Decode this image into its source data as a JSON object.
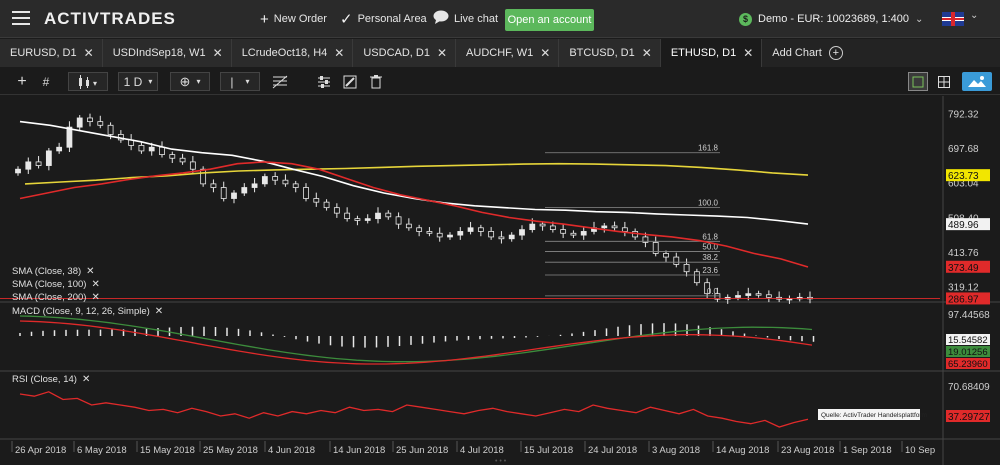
{
  "app": {
    "logo": "ACTIVTRADES"
  },
  "topnav": {
    "new_order": "New Order",
    "personal_area": "Personal Area",
    "live_chat": "Live chat",
    "open_account": "Open an account",
    "account_label": "Demo - EUR: 10023689, 1:400"
  },
  "tabs": [
    {
      "label": "EURUSD, D1"
    },
    {
      "label": "USDIndSep18, W1"
    },
    {
      "label": "LCrudeOct18, H4"
    },
    {
      "label": "USDCAD, D1"
    },
    {
      "label": "AUDCHF, W1"
    },
    {
      "label": "BTCUSD, D1"
    },
    {
      "label": "ETHUSD, D1"
    }
  ],
  "add_chart": "Add Chart",
  "toolbar": {
    "timeframe": "1 D"
  },
  "colors": {
    "background": "#1b1b1b",
    "sma38": "#e02a2a",
    "sma100": "#ffffff",
    "sma200": "#e6d53a",
    "macd_line": "#e02a2a",
    "signal_line": "#3c8c3c",
    "rsi_line": "#e02a2a",
    "accent_green": "#5cb85c",
    "accent_blue": "#3a9bd8"
  },
  "indicators": {
    "sma38": "SMA (Close, 38)",
    "sma100": "SMA (Close, 100)",
    "sma200": "SMA (Close, 200)",
    "macd": "MACD (Close, 9, 12, 26, Simple)",
    "rsi": "RSI (Close, 14)"
  },
  "source_note": "Quelle: ActivTrader Handelsplattform",
  "chart_data": {
    "type": "candlestick",
    "instrument": "ETHUSD",
    "timeframe": "D1",
    "price_axis": {
      "ticks": [
        "792.32",
        "697.68",
        "603.04",
        "508.40",
        "413.76",
        "319.12"
      ],
      "ylim": [
        280,
        840
      ]
    },
    "price_labels": [
      {
        "value": "623.73",
        "color": "#f2e600",
        "text_color": "#111"
      },
      {
        "value": "489.96",
        "color": "#f2f2f2",
        "text_color": "#111"
      },
      {
        "value": "373.49",
        "color": "#e02a2a",
        "text_color": "#111"
      },
      {
        "value": "286.97",
        "color": "#e02a2a",
        "text_color": "#111"
      }
    ],
    "x_labels": [
      "26 Apr 2018",
      "6 May 2018",
      "15 May 2018",
      "25 May 2018",
      "4 Jun 2018",
      "14 Jun 2018",
      "25 Jun 2018",
      "4 Jul 2018",
      "15 Jul 2018",
      "24 Jul 2018",
      "3 Aug 2018",
      "14 Aug 2018",
      "23 Aug 2018",
      "1 Sep 2018",
      "10 Sep"
    ],
    "candles_close": [
      640,
      660,
      650,
      690,
      700,
      755,
      780,
      770,
      760,
      735,
      720,
      705,
      690,
      700,
      680,
      670,
      660,
      640,
      600,
      590,
      560,
      575,
      590,
      600,
      620,
      610,
      600,
      590,
      560,
      550,
      535,
      520,
      505,
      500,
      505,
      520,
      510,
      490,
      480,
      470,
      465,
      455,
      460,
      470,
      480,
      470,
      455,
      450,
      460,
      475,
      490,
      485,
      475,
      465,
      460,
      470,
      480,
      485,
      480,
      470,
      455,
      440,
      410,
      400,
      380,
      360,
      330,
      300,
      285,
      290,
      295,
      300,
      297,
      290,
      285,
      287,
      290,
      287
    ],
    "fibonacci": {
      "levels": [
        "161.8",
        "100.0",
        "61.8",
        "50.0",
        "38.2",
        "23.6",
        "0.0"
      ],
      "prices": [
        685,
        535,
        443,
        415,
        386,
        351,
        294
      ]
    },
    "sma38": [
      560,
      575,
      590,
      600,
      612,
      622,
      630,
      640,
      655,
      660,
      655,
      640,
      615,
      590,
      570,
      555,
      540,
      522,
      508,
      498,
      490,
      480,
      470,
      462,
      455,
      445,
      430,
      410,
      395,
      373
    ],
    "sma100": [
      770,
      760,
      745,
      730,
      715,
      695,
      685,
      678,
      662,
      640,
      620,
      595,
      575,
      560,
      548,
      540,
      535,
      530,
      528,
      524,
      522,
      518,
      515,
      512,
      508,
      500,
      490
    ],
    "sma200": [
      600,
      605,
      610,
      617,
      622,
      630,
      635,
      638,
      640,
      642,
      645,
      648,
      650,
      652,
      654,
      655,
      654,
      652,
      650,
      645,
      638,
      630,
      624
    ],
    "macd": {
      "ticks": [
        "97.44568",
        "15.54582"
      ],
      "value_labels": [
        "15.54582",
        "19.01256",
        "65.23960"
      ]
    },
    "rsi": {
      "ticks": [
        "70.68409"
      ],
      "value_label": "37.29727",
      "values": [
        60,
        58,
        62,
        55,
        56,
        50,
        52,
        50,
        48,
        45,
        46,
        43,
        47,
        44,
        40,
        42,
        38,
        43,
        40,
        44,
        42,
        45,
        43,
        48,
        45,
        46,
        44,
        50,
        48,
        46,
        44,
        42,
        45,
        47,
        44,
        42,
        40,
        43,
        46,
        44,
        50,
        47,
        45,
        43,
        48,
        45,
        42,
        46,
        40,
        38,
        35,
        33,
        36,
        30,
        34,
        37
      ]
    }
  }
}
